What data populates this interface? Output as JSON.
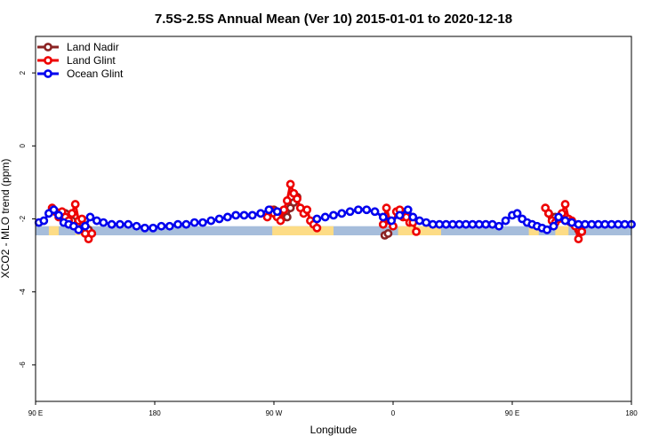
{
  "chart_data": {
    "type": "line",
    "title": "7.5S-2.5S Annual Mean (Ver 10)   2015-01-01 to 2020-12-18",
    "xlabel": "Longitude",
    "ylabel": "XCO2 - MLO trend (ppm)",
    "xlim": [
      90,
      450
    ],
    "ylim": [
      -7,
      3
    ],
    "x_ticks": [
      {
        "value": 90,
        "label": "90 E"
      },
      {
        "value": 162,
        "label": "180"
      },
      {
        "value": 234,
        "label": "90 W"
      },
      {
        "value": 306,
        "label": "0"
      },
      {
        "value": 378,
        "label": "90 E"
      },
      {
        "value": 450,
        "label": "180"
      }
    ],
    "y_ticks": [
      {
        "value": 2,
        "label": "2"
      },
      {
        "value": 0,
        "label": "0"
      },
      {
        "value": -2,
        "label": "-2"
      },
      {
        "value": -4,
        "label": "-4"
      },
      {
        "value": -6,
        "label": "-6"
      }
    ],
    "grid": false,
    "legend_position": "top-left",
    "background_band": {
      "y_range": [
        -2.45,
        -2.2
      ],
      "ocean_color": "#a6bddb",
      "land_color": "#fddc86",
      "land_x_ranges": [
        [
          98,
          104
        ],
        [
          114,
          122
        ],
        [
          233,
          270
        ],
        [
          309,
          335
        ],
        [
          388,
          394
        ],
        [
          404,
          412
        ]
      ]
    },
    "series": [
      {
        "name": "Land Nadir",
        "color": "#8b2323",
        "segments": [
          [
            [
              104,
              -1.85
            ],
            [
              106,
              -1.95
            ],
            [
              108,
              -1.85
            ],
            [
              110,
              -2.0
            ],
            [
              112,
              -2.05
            ],
            [
              116,
              -2.2
            ],
            [
              118,
              -2.1
            ],
            [
              120,
              -2.25
            ],
            [
              122,
              -2.3
            ]
          ],
          [
            [
              232,
              -1.8
            ],
            [
              234,
              -1.75
            ],
            [
              236,
              -1.85
            ],
            [
              238,
              -1.95
            ],
            [
              240,
              -1.95
            ],
            [
              242,
              -1.95
            ],
            [
              244,
              -1.7
            ],
            [
              246,
              -1.55
            ],
            [
              248,
              -1.4
            ]
          ],
          [
            [
              301,
              -2.45
            ],
            [
              303,
              -2.4
            ]
          ],
          [
            [
              313,
              -1.85
            ],
            [
              315,
              -1.95
            ],
            [
              317,
              -1.95
            ]
          ],
          [
            [
              400,
              -1.85
            ],
            [
              402,
              -1.95
            ],
            [
              404,
              -1.95
            ],
            [
              418,
              -2.3
            ],
            [
              420,
              -2.35
            ]
          ]
        ]
      },
      {
        "name": "Land Glint",
        "color": "#ee0000",
        "segments": [
          [
            [
              100,
              -1.7
            ],
            [
              102,
              -1.8
            ],
            [
              104,
              -1.95
            ],
            [
              106,
              -1.8
            ],
            [
              108,
              -1.95
            ],
            [
              110,
              -2.05
            ],
            [
              112,
              -1.85
            ],
            [
              114,
              -1.6
            ],
            [
              116,
              -2.05
            ],
            [
              118,
              -2.0
            ],
            [
              120,
              -2.4
            ],
            [
              122,
              -2.55
            ],
            [
              124,
              -2.4
            ]
          ],
          [
            [
              230,
              -1.95
            ],
            [
              232,
              -1.75
            ],
            [
              234,
              -1.85
            ],
            [
              236,
              -1.95
            ],
            [
              238,
              -2.05
            ],
            [
              240,
              -1.75
            ],
            [
              242,
              -1.5
            ],
            [
              244,
              -1.05
            ],
            [
              246,
              -1.3
            ],
            [
              248,
              -1.45
            ],
            [
              250,
              -1.7
            ],
            [
              252,
              -1.85
            ],
            [
              254,
              -1.75
            ],
            [
              256,
              -2.05
            ],
            [
              258,
              -2.15
            ],
            [
              260,
              -2.25
            ]
          ],
          [
            [
              300,
              -2.15
            ],
            [
              302,
              -1.7
            ],
            [
              304,
              -2.05
            ],
            [
              306,
              -2.2
            ],
            [
              308,
              -1.8
            ],
            [
              310,
              -1.75
            ],
            [
              312,
              -1.95
            ],
            [
              314,
              -1.95
            ],
            [
              316,
              -2.1
            ],
            [
              318,
              -2.1
            ],
            [
              320,
              -2.35
            ]
          ],
          [
            [
              398,
              -1.7
            ],
            [
              400,
              -1.85
            ],
            [
              402,
              -2.05
            ],
            [
              404,
              -2.1
            ],
            [
              406,
              -2.0
            ],
            [
              408,
              -1.85
            ],
            [
              410,
              -1.6
            ],
            [
              412,
              -2.0
            ],
            [
              414,
              -2.05
            ],
            [
              416,
              -2.2
            ],
            [
              418,
              -2.55
            ],
            [
              420,
              -2.35
            ]
          ]
        ]
      },
      {
        "name": "Ocean Glint",
        "color": "#0000ee",
        "segments": [
          [
            [
              92,
              -2.1
            ],
            [
              95,
              -2.05
            ],
            [
              98,
              -1.85
            ],
            [
              101,
              -1.75
            ],
            [
              104,
              -1.9
            ],
            [
              107,
              -2.1
            ],
            [
              110,
              -2.15
            ],
            [
              113,
              -2.2
            ],
            [
              116,
              -2.3
            ],
            [
              120,
              -2.2
            ],
            [
              123,
              -1.95
            ],
            [
              127,
              -2.05
            ],
            [
              131,
              -2.1
            ],
            [
              136,
              -2.15
            ],
            [
              141,
              -2.15
            ],
            [
              146,
              -2.15
            ],
            [
              151,
              -2.2
            ],
            [
              156,
              -2.25
            ],
            [
              161,
              -2.25
            ],
            [
              166,
              -2.2
            ],
            [
              171,
              -2.2
            ],
            [
              176,
              -2.15
            ],
            [
              181,
              -2.15
            ],
            [
              186,
              -2.1
            ],
            [
              191,
              -2.1
            ],
            [
              196,
              -2.05
            ],
            [
              201,
              -2.0
            ],
            [
              206,
              -1.95
            ],
            [
              211,
              -1.9
            ],
            [
              216,
              -1.9
            ],
            [
              221,
              -1.9
            ],
            [
              226,
              -1.85
            ],
            [
              231,
              -1.75
            ],
            [
              236,
              -1.8
            ]
          ],
          [
            [
              260,
              -2.0
            ],
            [
              265,
              -1.95
            ],
            [
              270,
              -1.9
            ],
            [
              275,
              -1.85
            ],
            [
              280,
              -1.8
            ],
            [
              285,
              -1.75
            ],
            [
              290,
              -1.75
            ],
            [
              295,
              -1.8
            ],
            [
              300,
              -1.95
            ],
            [
              305,
              -2.05
            ],
            [
              310,
              -1.9
            ],
            [
              315,
              -1.75
            ],
            [
              318,
              -1.95
            ],
            [
              322,
              -2.05
            ],
            [
              326,
              -2.1
            ],
            [
              330,
              -2.15
            ],
            [
              334,
              -2.15
            ],
            [
              338,
              -2.15
            ],
            [
              342,
              -2.15
            ],
            [
              346,
              -2.15
            ],
            [
              350,
              -2.15
            ],
            [
              354,
              -2.15
            ],
            [
              358,
              -2.15
            ],
            [
              362,
              -2.15
            ],
            [
              366,
              -2.15
            ],
            [
              370,
              -2.2
            ],
            [
              374,
              -2.05
            ],
            [
              378,
              -1.9
            ],
            [
              381,
              -1.85
            ],
            [
              384,
              -2.0
            ],
            [
              387,
              -2.1
            ],
            [
              390,
              -2.15
            ],
            [
              393,
              -2.2
            ],
            [
              396,
              -2.25
            ],
            [
              399,
              -2.3
            ],
            [
              403,
              -2.2
            ],
            [
              406,
              -1.95
            ],
            [
              410,
              -2.05
            ],
            [
              414,
              -2.1
            ],
            [
              418,
              -2.15
            ],
            [
              422,
              -2.15
            ],
            [
              426,
              -2.15
            ],
            [
              430,
              -2.15
            ],
            [
              434,
              -2.15
            ],
            [
              438,
              -2.15
            ],
            [
              442,
              -2.15
            ],
            [
              446,
              -2.15
            ],
            [
              450,
              -2.15
            ]
          ]
        ]
      }
    ]
  }
}
